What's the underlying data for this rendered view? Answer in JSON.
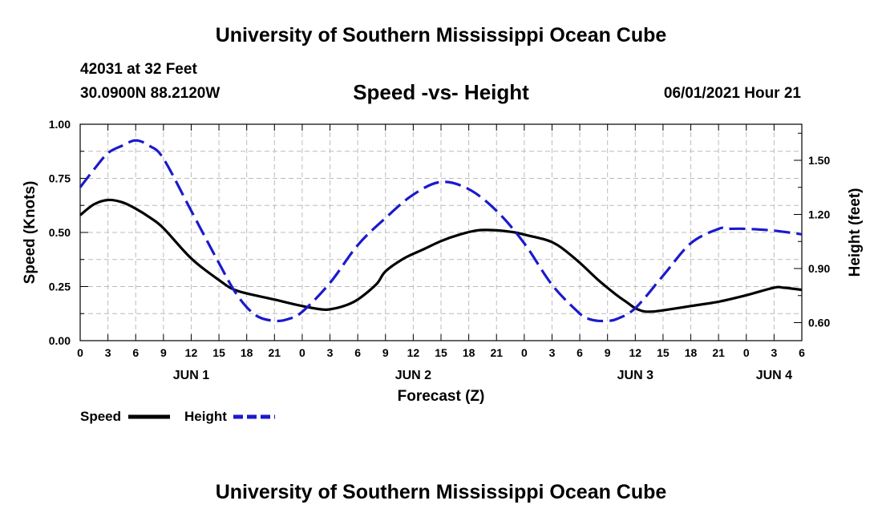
{
  "header": {
    "title": "University of Southern Mississippi Ocean Cube"
  },
  "footer": {
    "title": "University of Southern Mississippi Ocean Cube"
  },
  "station": {
    "label": "42031 at 32 Feet",
    "coordinates": "30.0900N  88.2120W",
    "datetime": "06/01/2021 Hour 21"
  },
  "colors": {
    "speed": "#000000",
    "height": "#1a1acc",
    "grid": "#bbbbbb"
  },
  "chart_data": {
    "type": "line",
    "title": "Speed -vs- Height",
    "xlabel": "Forecast (Z)",
    "ylabel": "Speed (Knots)",
    "y2label": "Height (feet)",
    "x_range_hours": [
      0,
      78
    ],
    "ylim": [
      0,
      1.0
    ],
    "y2lim": [
      0.5,
      1.7
    ],
    "y_ticks": [
      "0.00",
      "0.25",
      "0.50",
      "0.75",
      "1.00"
    ],
    "y2_ticks": [
      "0.60",
      "0.90",
      "1.20",
      "1.50"
    ],
    "x_tick_labels": [
      "0",
      "3",
      "6",
      "9",
      "12",
      "15",
      "18",
      "21",
      "0",
      "3",
      "6",
      "9",
      "12",
      "15",
      "18",
      "21",
      "0",
      "3",
      "6",
      "9",
      "12",
      "15",
      "18",
      "21",
      "0",
      "3",
      "6"
    ],
    "day_labels": [
      {
        "label": "JUN 1",
        "hour": 12
      },
      {
        "label": "JUN 2",
        "hour": 36
      },
      {
        "label": "JUN 3",
        "hour": 60
      },
      {
        "label": "JUN 4",
        "hour": 75
      }
    ],
    "legend": [
      {
        "name": "Speed",
        "style": "solid"
      },
      {
        "name": "Height",
        "style": "dashed"
      }
    ],
    "series": [
      {
        "name": "Speed",
        "axis": "left",
        "x": [
          0,
          1.5,
          3,
          4.5,
          6,
          7.5,
          9,
          12,
          15,
          17,
          21,
          24,
          26,
          27,
          28.5,
          30,
          32,
          33,
          35,
          37,
          39,
          41,
          43,
          45,
          47,
          48,
          50,
          51,
          52,
          54,
          56,
          58,
          59,
          60,
          61,
          62,
          63,
          66,
          69,
          72,
          75,
          76,
          78
        ],
        "values": [
          0.58,
          0.63,
          0.65,
          0.64,
          0.61,
          0.57,
          0.52,
          0.38,
          0.28,
          0.23,
          0.19,
          0.16,
          0.145,
          0.145,
          0.16,
          0.19,
          0.26,
          0.32,
          0.38,
          0.42,
          0.46,
          0.49,
          0.51,
          0.51,
          0.5,
          0.49,
          0.47,
          0.455,
          0.43,
          0.36,
          0.28,
          0.21,
          0.18,
          0.15,
          0.135,
          0.135,
          0.14,
          0.16,
          0.18,
          0.21,
          0.245,
          0.245,
          0.235
        ]
      },
      {
        "name": "Height",
        "axis": "right",
        "x": [
          0,
          1.5,
          3,
          4.5,
          6,
          7.5,
          9,
          12,
          15,
          17,
          19,
          21,
          22.5,
          24,
          27,
          30,
          33,
          36,
          39,
          42,
          45,
          48,
          51,
          54,
          55,
          56,
          57,
          58,
          60,
          63,
          66,
          69,
          70,
          72,
          75,
          78
        ],
        "values": [
          1.35,
          1.45,
          1.54,
          1.58,
          1.61,
          1.58,
          1.51,
          1.22,
          0.93,
          0.75,
          0.64,
          0.61,
          0.62,
          0.66,
          0.82,
          1.03,
          1.18,
          1.31,
          1.38,
          1.34,
          1.22,
          1.04,
          0.81,
          0.65,
          0.62,
          0.61,
          0.61,
          0.62,
          0.68,
          0.86,
          1.04,
          1.12,
          1.12,
          1.12,
          1.11,
          1.09
        ]
      }
    ]
  }
}
